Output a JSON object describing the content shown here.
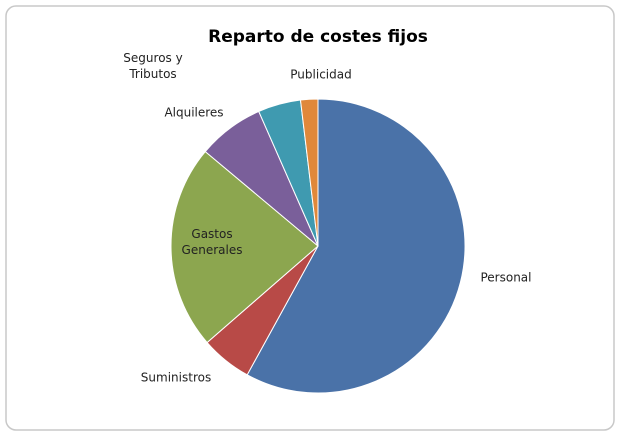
{
  "chart_data": {
    "type": "pie",
    "title": "Reparto de costes fijos",
    "categories": [
      "Personal",
      "Suministros",
      "Gastos\nGenerales",
      "Alquileres",
      "Seguros y\nTributos",
      "Publicidad"
    ],
    "values": [
      58,
      5.6,
      22.5,
      7.3,
      4.7,
      1.9
    ],
    "colors": [
      "#4a72a8",
      "#b84a47",
      "#8ca64f",
      "#7a5f9a",
      "#3f9ab0",
      "#e0883a"
    ]
  }
}
